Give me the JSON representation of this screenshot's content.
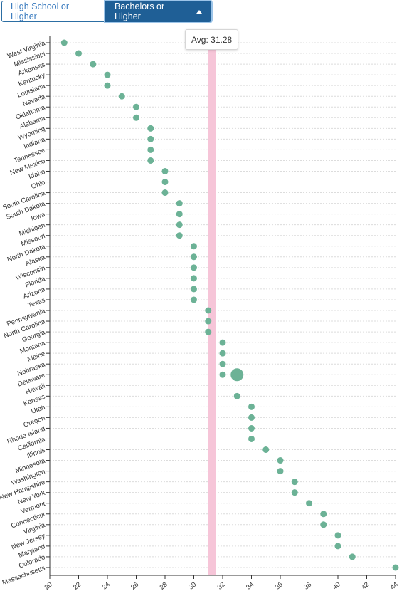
{
  "tabs": {
    "high_school": "High School or Higher",
    "bachelors": "Bachelors or Higher"
  },
  "tooltip": {
    "prefix": "Avg: ",
    "value": "31.28"
  },
  "colors": {
    "dot": "#6cb296",
    "avg_band": "#f6c5d8",
    "grid": "#dcdcdc",
    "axis": "#333333"
  },
  "chart_data": {
    "type": "scatter",
    "xlabel": "",
    "ylabel": "",
    "xlim": [
      20,
      44
    ],
    "xticks": [
      "20",
      "22",
      "24",
      "26",
      "28",
      "30",
      "32",
      "34",
      "36",
      "38",
      "40",
      "42",
      "44"
    ],
    "average": 31.28,
    "highlighted": "Hawaii",
    "states": [
      "West Virginia",
      "Mississippi",
      "Arkansas",
      "Kentucky",
      "Louisiana",
      "Nevada",
      "Oklahoma",
      "Alabama",
      "Wyoming",
      "Indiana",
      "Tennessee",
      "New Mexico",
      "Idaho",
      "Ohio",
      "South Carolina",
      "South Dakota",
      "Iowa",
      "Michigan",
      "Missouri",
      "North Dakota",
      "Alaska",
      "Wisconsin",
      "Florida",
      "Arizona",
      "Texas",
      "Pennsylvania",
      "North Carolina",
      "Georgia",
      "Montana",
      "Maine",
      "Nebraska",
      "Delaware",
      "Hawaii",
      "Kansas",
      "Utah",
      "Oregon",
      "Rhode Island",
      "California",
      "Illinois",
      "Minnesota",
      "Washington",
      "New Hampshire",
      "New York",
      "Vermont",
      "Connecticut",
      "Virginia",
      "New Jersey",
      "Maryland",
      "Colorado",
      "Massachusetts"
    ],
    "values": [
      21,
      22,
      23,
      24,
      24,
      25,
      26,
      26,
      27,
      27,
      27,
      27,
      28,
      28,
      28,
      29,
      29,
      29,
      29,
      30,
      30,
      30,
      30,
      30,
      30,
      31,
      31,
      31,
      32,
      32,
      32,
      32,
      33,
      33,
      34,
      34,
      34,
      34,
      35,
      36,
      36,
      37,
      37,
      38,
      39,
      39,
      40,
      40,
      41,
      44
    ]
  }
}
